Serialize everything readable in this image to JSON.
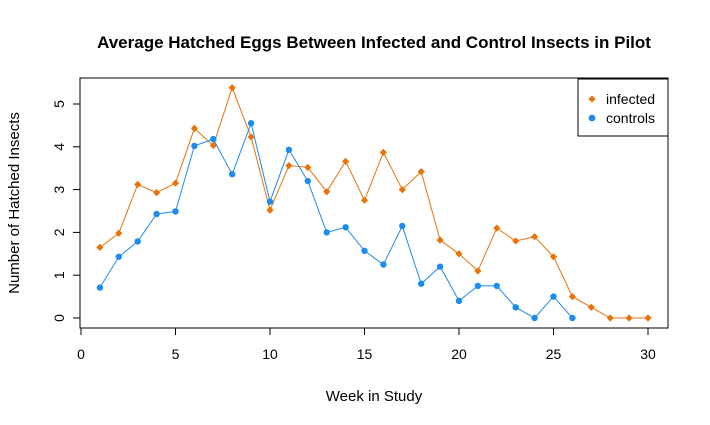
{
  "chart_data": {
    "type": "line",
    "title": "Average Hatched Eggs Between Infected and Control Insects in Pilot",
    "xlabel": "Week in Study",
    "ylabel": "Number of Hatched Insects",
    "xlim": [
      0,
      30
    ],
    "ylim": [
      0,
      5
    ],
    "x_ticks": [
      0,
      5,
      10,
      15,
      20,
      25,
      30
    ],
    "y_ticks": [
      0,
      1,
      2,
      3,
      4,
      5
    ],
    "grid": false,
    "legend_position": "top-right",
    "series": [
      {
        "name": "infected",
        "color": "#E8730A",
        "marker": "diamond",
        "x": [
          1,
          2,
          3,
          4,
          5,
          6,
          7,
          8,
          9,
          10,
          11,
          12,
          13,
          14,
          15,
          16,
          17,
          18,
          19,
          20,
          21,
          22,
          23,
          24,
          25,
          26,
          27,
          28,
          29,
          30
        ],
        "values": [
          1.65,
          1.98,
          3.12,
          2.93,
          3.15,
          4.43,
          4.03,
          5.38,
          4.23,
          2.52,
          3.56,
          3.52,
          2.95,
          3.66,
          2.75,
          3.87,
          3.0,
          3.42,
          1.82,
          1.5,
          1.1,
          2.1,
          1.8,
          1.9,
          1.43,
          0.5,
          0.25,
          0.0,
          0.0,
          0.0
        ]
      },
      {
        "name": "controls",
        "color": "#1E8CEB",
        "marker": "circle",
        "x": [
          1,
          2,
          3,
          4,
          5,
          6,
          7,
          8,
          9,
          10,
          11,
          12,
          13,
          14,
          15,
          16,
          17,
          18,
          19,
          20,
          21,
          22,
          23,
          24,
          25,
          26
        ],
        "values": [
          0.71,
          1.43,
          1.79,
          2.43,
          2.49,
          4.02,
          4.18,
          3.36,
          4.55,
          2.72,
          3.93,
          3.2,
          2.0,
          2.12,
          1.57,
          1.25,
          2.15,
          0.8,
          1.2,
          0.4,
          0.75,
          0.75,
          0.25,
          0.0,
          0.5,
          0.0
        ]
      }
    ]
  }
}
